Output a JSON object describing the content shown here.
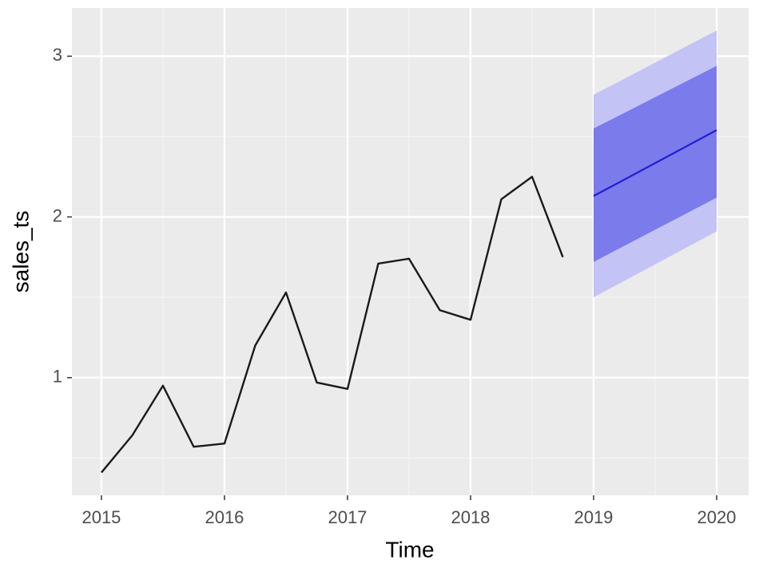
{
  "chart_data": {
    "type": "forecast",
    "x_label": "Time",
    "y_label": "sales_ts",
    "xlim": [
      2014.76,
      2020.26
    ],
    "ylim": [
      0.268,
      3.3
    ],
    "xticks": [
      2015,
      2016,
      2017,
      2018,
      2019,
      2020
    ],
    "yticks": [
      1,
      2,
      3
    ],
    "x_minor_gridlines": [
      2015.5,
      2016.5,
      2017.5,
      2018.5,
      2019.5
    ],
    "y_minor_gridlines": [
      0.5,
      1.5,
      2.5
    ],
    "grid": true,
    "series": [
      {
        "color": "#1a1a1a",
        "x": [
          2015,
          2015.25,
          2015.5,
          2015.75,
          2016,
          2016.25,
          2016.5,
          2016.75,
          2017,
          2017.25,
          2017.5,
          2017.75,
          2018,
          2018.25,
          2018.5,
          2018.75
        ],
        "values": [
          0.41,
          0.64,
          0.95,
          0.57,
          0.59,
          1.2,
          1.53,
          0.97,
          0.93,
          1.71,
          1.74,
          1.42,
          1.36,
          2.11,
          2.25,
          1.75
        ]
      }
    ],
    "forecast": {
      "color": "#1f1fd6",
      "x": [
        2019,
        2020
      ],
      "values": [
        2.13,
        2.54
      ],
      "bands": [
        {
          "color": "#c3c3f6",
          "lower": [
            1.5,
            1.91
          ],
          "upper": [
            2.76,
            3.16
          ]
        },
        {
          "color": "#7b7bec",
          "lower": [
            1.72,
            2.12
          ],
          "upper": [
            2.55,
            2.94
          ]
        }
      ]
    }
  }
}
